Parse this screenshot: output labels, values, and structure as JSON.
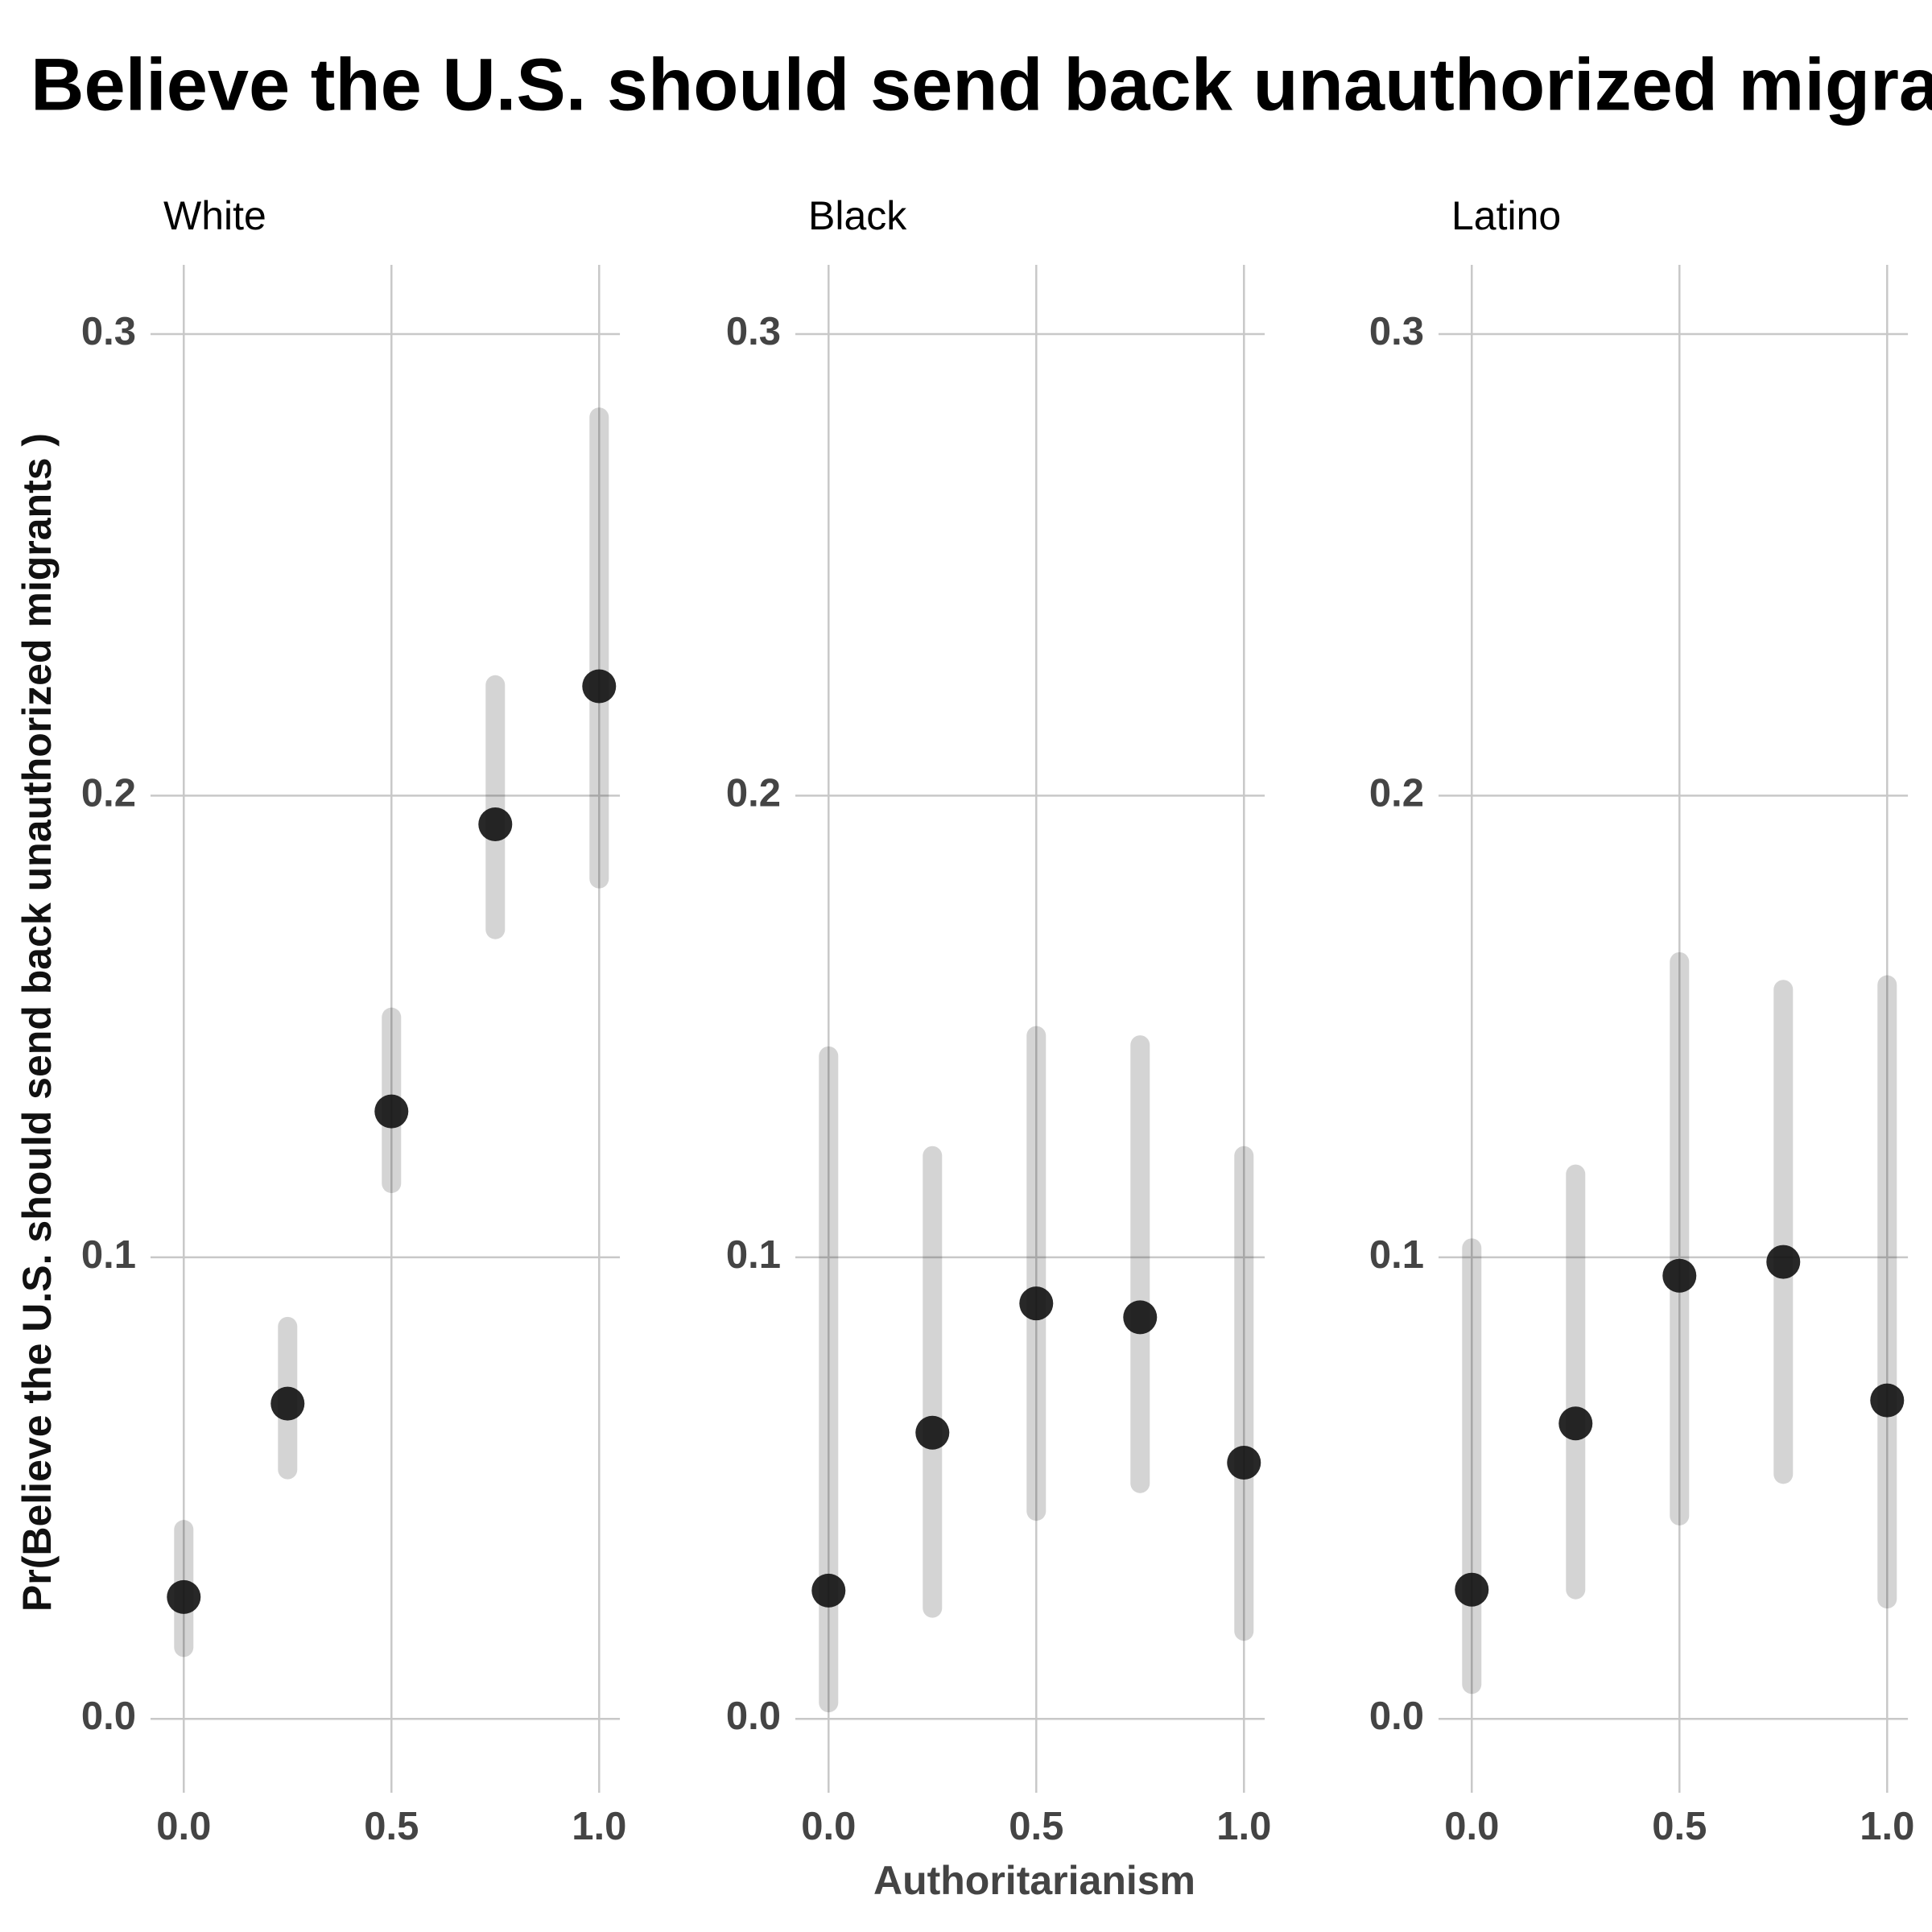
{
  "chart_data": {
    "type": "scatter",
    "title": "Believe the U.S. should send back unauthorized migrants",
    "x_label": "Authoritarianism",
    "y_label": "Pr(Believe the U.S. should send back unauthorized migrants )",
    "xlim": [
      -0.08,
      1.05
    ],
    "xticks": [
      {
        "value": 0,
        "label": "0.0"
      },
      0.5,
      {
        "value": 1,
        "label": "1.0"
      }
    ],
    "ylim": [
      -0.016,
      0.315
    ],
    "yticks": [
      {
        "value": 0,
        "label": "0.0"
      },
      0.1,
      0.2,
      0.3
    ],
    "grid": true,
    "color": "#111111",
    "facets": [
      {
        "name": "White",
        "x": [
          0,
          0.25,
          0.5,
          0.75,
          1
        ],
        "values": [
          0.0264,
          0.0683,
          0.1316,
          0.1938,
          0.2237
        ],
        "min": [
          0.0155,
          0.054,
          0.116,
          0.171,
          0.182
        ],
        "max": [
          0.041,
          0.085,
          0.152,
          0.224,
          0.282
        ]
      },
      {
        "name": "Black",
        "x": [
          0,
          0.25,
          0.5,
          0.75,
          1
        ],
        "values": [
          0.0278,
          0.062,
          0.09,
          0.087,
          0.0555
        ],
        "min": [
          0.0035,
          0.024,
          0.045,
          0.051,
          0.019
        ],
        "max": [
          0.1436,
          0.122,
          0.148,
          0.146,
          0.122
        ]
      },
      {
        "name": "Latino",
        "x": [
          0,
          0.25,
          0.5,
          0.75,
          1
        ],
        "values": [
          0.028,
          0.064,
          0.096,
          0.099,
          0.069
        ],
        "min": [
          0.0075,
          0.028,
          0.044,
          0.053,
          0.026
        ],
        "max": [
          0.102,
          0.118,
          0.164,
          0.158,
          0.159
        ]
      }
    ]
  }
}
